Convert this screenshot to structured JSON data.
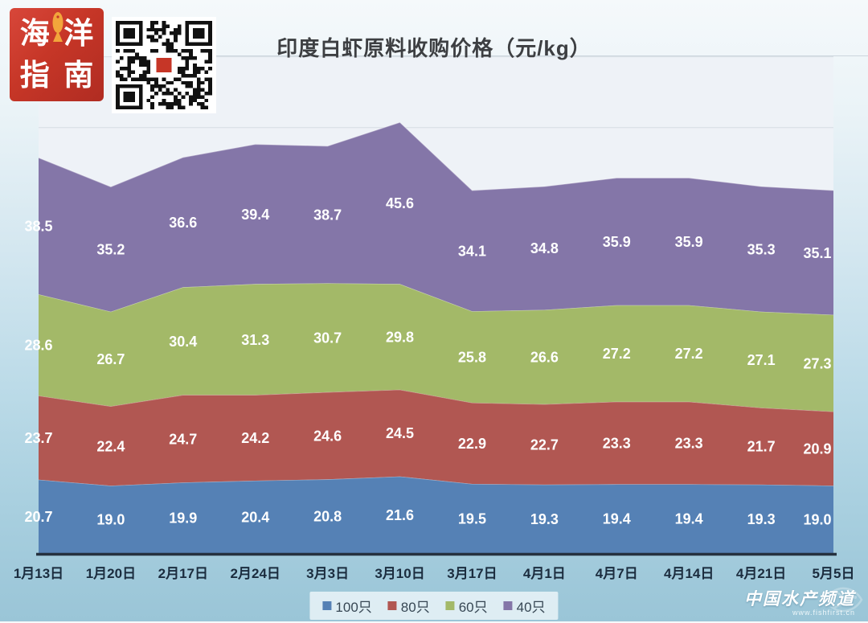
{
  "header": {
    "logo": {
      "chars": [
        "海",
        "洋",
        "指",
        "南"
      ]
    },
    "title": "印度白虾原料收购价格（元/kg）"
  },
  "chart_data": {
    "type": "area",
    "stacked": true,
    "title": "印度白虾原料收购价格（元/kg）",
    "categories": [
      "1月13日",
      "1月20日",
      "2月17日",
      "2月24日",
      "3月3日",
      "3月10日",
      "3月17日",
      "4月1日",
      "4月7日",
      "4月14日",
      "4月21日",
      "5月5日"
    ],
    "series": [
      {
        "name": "100只",
        "color": "#5581b5",
        "values": [
          20.7,
          19.0,
          19.9,
          20.4,
          20.8,
          21.6,
          19.5,
          19.3,
          19.4,
          19.4,
          19.3,
          19.0
        ]
      },
      {
        "name": "80只",
        "color": "#b15752",
        "values": [
          23.7,
          22.4,
          24.7,
          24.2,
          24.6,
          24.5,
          22.9,
          22.7,
          23.3,
          23.3,
          21.7,
          20.9
        ]
      },
      {
        "name": "60只",
        "color": "#a3b968",
        "values": [
          28.6,
          26.7,
          30.4,
          31.3,
          30.7,
          29.8,
          25.8,
          26.6,
          27.2,
          27.2,
          27.1,
          27.3
        ]
      },
      {
        "name": "40只",
        "color": "#8476a8",
        "values": [
          38.5,
          35.2,
          36.6,
          39.4,
          38.7,
          45.6,
          34.1,
          34.8,
          35.9,
          35.9,
          35.3,
          35.1
        ]
      }
    ],
    "ylim": [
      0,
      140
    ],
    "grid_step": 20,
    "grid_on": true,
    "legend_position": "bottom",
    "label_color": "#ffffff",
    "plot_bg": "#eef2f7",
    "gridline_color": "#d6dce3",
    "axis_color": "#25313f",
    "xlabel_color": "#1b2c3e"
  },
  "footer": {
    "watermark_line1": "中国水产频道",
    "watermark_line2": "www.fishfirst.cn"
  }
}
